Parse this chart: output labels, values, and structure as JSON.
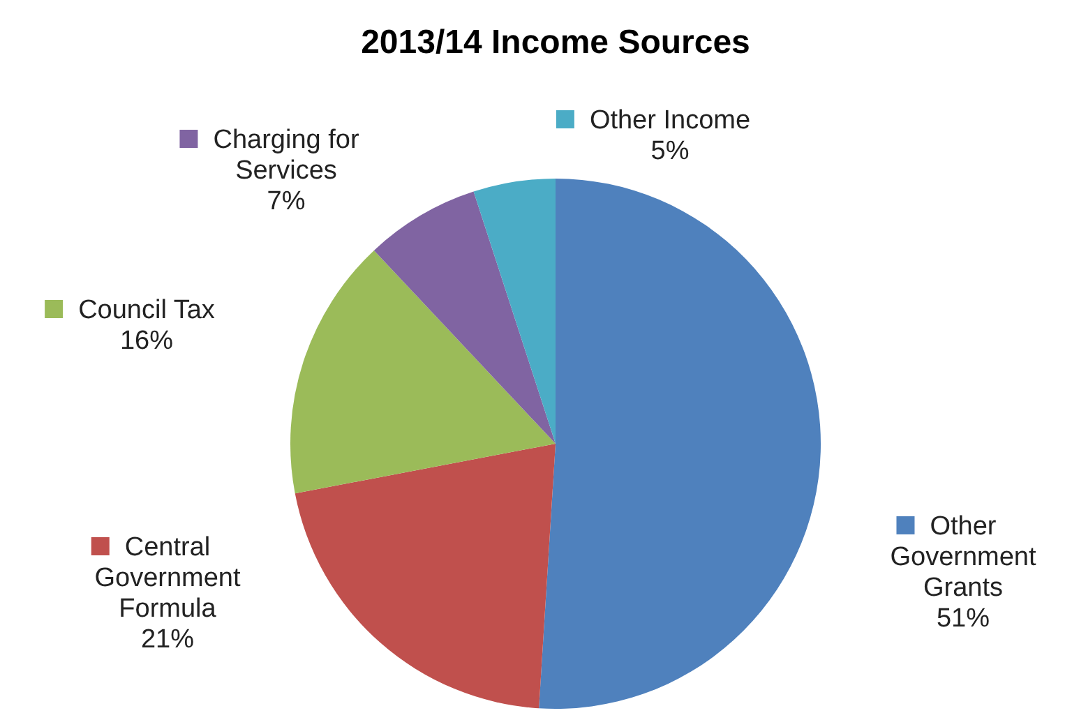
{
  "chart_data": {
    "type": "pie",
    "title": "2013/14 Income Sources",
    "categories": [
      "Other Government Grants",
      "Central Government Formula",
      "Council Tax",
      "Charging for Services",
      "Other Income"
    ],
    "values": [
      51,
      21,
      16,
      7,
      5
    ],
    "colors": [
      "#4f81bd",
      "#c0504d",
      "#9bbb59",
      "#8064a2",
      "#4bacc6"
    ],
    "value_labels": [
      "51%",
      "21%",
      "16%",
      "7%",
      "5%"
    ],
    "legend": true
  }
}
